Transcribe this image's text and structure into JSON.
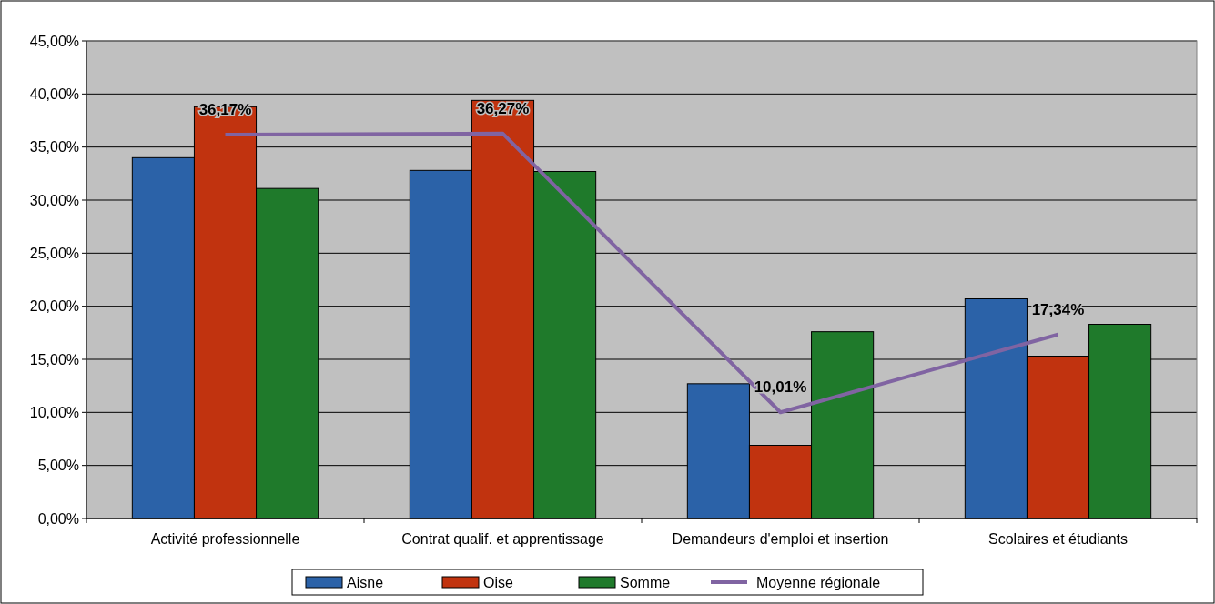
{
  "chart_data": {
    "type": "bar",
    "categories": [
      "Activité professionnelle",
      "Contrat qualif. et apprentissage",
      "Demandeurs d'emploi et insertion",
      "Scolaires et étudiants"
    ],
    "series": [
      {
        "name": "Aisne",
        "color": "#2b62a8",
        "values": [
          34.0,
          32.8,
          12.7,
          20.7
        ]
      },
      {
        "name": "Oise",
        "color": "#c1330f",
        "values": [
          38.8,
          39.4,
          6.9,
          15.3
        ]
      },
      {
        "name": "Somme",
        "color": "#1f7a2b",
        "values": [
          31.1,
          32.7,
          17.6,
          18.3
        ]
      },
      {
        "name": "Moyenne régionale",
        "type": "line",
        "color": "#8064a2",
        "values": [
          36.17,
          36.27,
          10.01,
          17.34
        ],
        "value_labels": [
          "36,17%",
          "36,27%",
          "10,01%",
          "17,34%"
        ]
      }
    ],
    "ylim": [
      0,
      45
    ],
    "yticks": [
      {
        "value": 0,
        "label": "0,00%"
      },
      {
        "value": 5,
        "label": "5,00%"
      },
      {
        "value": 10,
        "label": "10,00%"
      },
      {
        "value": 15,
        "label": "15,00%"
      },
      {
        "value": 20,
        "label": "20,00%"
      },
      {
        "value": 25,
        "label": "25,00%"
      },
      {
        "value": 30,
        "label": "30,00%"
      },
      {
        "value": 35,
        "label": "35,00%"
      },
      {
        "value": 40,
        "label": "40,00%"
      },
      {
        "value": 45,
        "label": "45,00%"
      }
    ],
    "grid": "y",
    "legend": "bottom",
    "marker": "none",
    "line_style": "solid"
  }
}
